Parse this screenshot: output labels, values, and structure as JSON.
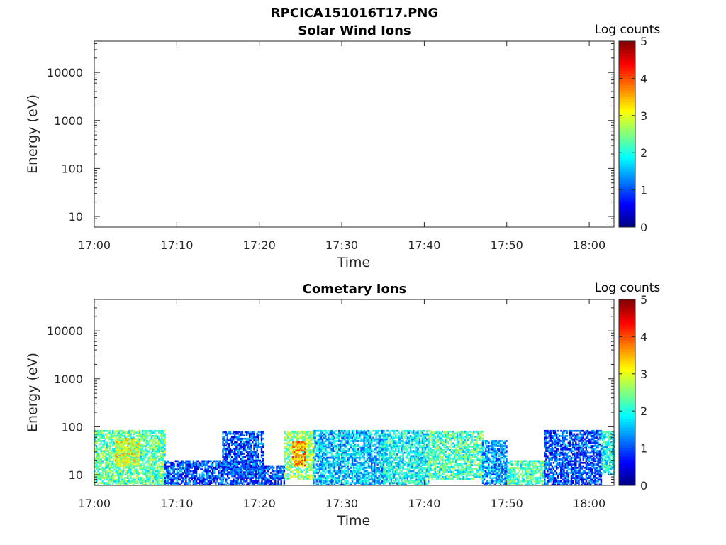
{
  "figure_title": "RPCICA151016T17.PNG",
  "chart_data": [
    {
      "type": "heatmap",
      "title": "Solar Wind Ions",
      "xlabel": "Time",
      "ylabel": "Energy (eV)",
      "x_ticks": [
        "17:00",
        "17:10",
        "17:20",
        "17:30",
        "17:40",
        "17:50",
        "18:00"
      ],
      "y_ticks": [
        "10",
        "100",
        "1000",
        "10000"
      ],
      "y_scale": "log",
      "ylim": [
        6,
        45000
      ],
      "xlim_minutes": [
        0,
        63
      ],
      "colorbar": {
        "label": "Log counts",
        "ticks": [
          "0",
          "1",
          "2",
          "3",
          "4",
          "5"
        ],
        "range": [
          0,
          5
        ],
        "colormap": "jet"
      },
      "regions": []
    },
    {
      "type": "heatmap",
      "title": "Cometary Ions",
      "xlabel": "Time",
      "ylabel": "Energy (eV)",
      "x_ticks": [
        "17:00",
        "17:10",
        "17:20",
        "17:30",
        "17:40",
        "17:50",
        "18:00"
      ],
      "y_ticks": [
        "10",
        "100",
        "1000",
        "10000"
      ],
      "y_scale": "log",
      "ylim": [
        6,
        45000
      ],
      "xlim_minutes": [
        0,
        63
      ],
      "colorbar": {
        "label": "Log counts",
        "ticks": [
          "0",
          "1",
          "2",
          "3",
          "4",
          "5"
        ],
        "range": [
          0,
          5
        ],
        "colormap": "jet"
      },
      "regions": [
        {
          "t0": 0.0,
          "t1": 8.5,
          "emin": 6,
          "emax": 80,
          "level": 2.3
        },
        {
          "t0": 2.5,
          "t1": 5.5,
          "emin": 15,
          "emax": 55,
          "level": 3.0
        },
        {
          "t0": 8.5,
          "t1": 19.5,
          "emin": 6,
          "emax": 20,
          "level": 1.0
        },
        {
          "t0": 15.5,
          "t1": 20.5,
          "emin": 10,
          "emax": 80,
          "level": 1.0
        },
        {
          "t0": 19.5,
          "t1": 23.0,
          "emin": 6,
          "emax": 15,
          "level": 1.0
        },
        {
          "t0": 23.0,
          "t1": 26.5,
          "emin": 8,
          "emax": 80,
          "level": 2.6
        },
        {
          "t0": 24.0,
          "t1": 25.5,
          "emin": 15,
          "emax": 50,
          "level": 3.6
        },
        {
          "t0": 26.5,
          "t1": 35.0,
          "emin": 6,
          "emax": 80,
          "level": 1.6
        },
        {
          "t0": 35.0,
          "t1": 40.5,
          "emin": 6,
          "emax": 80,
          "level": 1.9
        },
        {
          "t0": 40.5,
          "t1": 47.0,
          "emin": 8,
          "emax": 80,
          "level": 2.2
        },
        {
          "t0": 47.0,
          "t1": 50.0,
          "emin": 6,
          "emax": 50,
          "level": 1.4
        },
        {
          "t0": 50.0,
          "t1": 54.5,
          "emin": 6,
          "emax": 20,
          "level": 2.2
        },
        {
          "t0": 54.5,
          "t1": 61.5,
          "emin": 6,
          "emax": 80,
          "level": 1.0
        },
        {
          "t0": 61.5,
          "t1": 63.0,
          "emin": 10,
          "emax": 80,
          "level": 1.9
        }
      ]
    }
  ]
}
